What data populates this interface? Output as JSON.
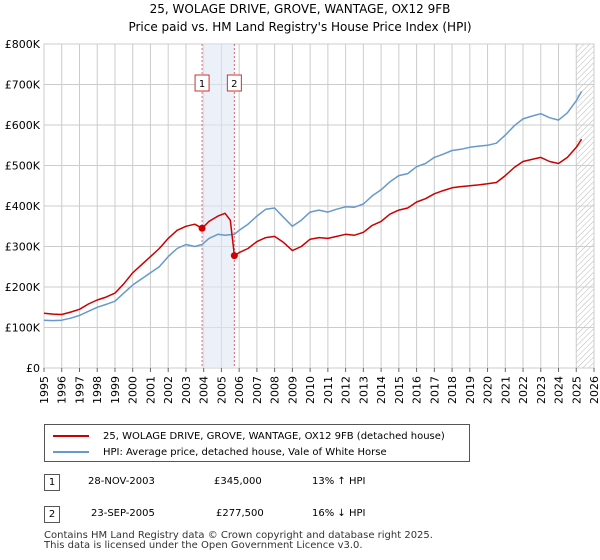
{
  "title_line1": "25, WOLAGE DRIVE, GROVE, WANTAGE, OX12 9FB",
  "title_line2": "Price paid vs. HM Land Registry's House Price Index (HPI)",
  "colors": {
    "price": "#cc0000",
    "hpi": "#6699cc",
    "grid": "#cccccc",
    "vline": "#e06666",
    "hatch": "#999999"
  },
  "chart_data": {
    "type": "line",
    "title": "Price paid vs. HM Land Registry's House Price Index (HPI)",
    "xlabel": "",
    "ylabel": "",
    "xlim": [
      1995,
      2026
    ],
    "ylim": [
      0,
      800000
    ],
    "y_ticks": [
      {
        "value": 0,
        "label": "£0"
      },
      {
        "value": 100000,
        "label": "£100K"
      },
      {
        "value": 200000,
        "label": "£200K"
      },
      {
        "value": 300000,
        "label": "£300K"
      },
      {
        "value": 400000,
        "label": "£400K"
      },
      {
        "value": 500000,
        "label": "£500K"
      },
      {
        "value": 600000,
        "label": "£600K"
      },
      {
        "value": 700000,
        "label": "£700K"
      },
      {
        "value": 800000,
        "label": "£800K"
      }
    ],
    "x_ticks": [
      "1995",
      "1996",
      "1997",
      "1998",
      "1999",
      "2000",
      "2001",
      "2002",
      "2003",
      "2004",
      "2005",
      "2006",
      "2007",
      "2008",
      "2009",
      "2010",
      "2011",
      "2012",
      "2013",
      "2014",
      "2015",
      "2016",
      "2017",
      "2018",
      "2019",
      "2020",
      "2021",
      "2022",
      "2023",
      "2024",
      "2025",
      "2026"
    ],
    "forecast_start": 2025.0,
    "series": [
      {
        "name": "25, WOLAGE DRIVE, GROVE, WANTAGE, OX12 9FB (detached house)",
        "color": "#cc0000",
        "points": [
          [
            1995,
            135000
          ],
          [
            1995.5,
            133000
          ],
          [
            1996,
            132000
          ],
          [
            1996.5,
            138000
          ],
          [
            1997,
            145000
          ],
          [
            1997.5,
            158000
          ],
          [
            1998,
            168000
          ],
          [
            1998.5,
            175000
          ],
          [
            1999,
            185000
          ],
          [
            1999.5,
            208000
          ],
          [
            2000,
            235000
          ],
          [
            2000.5,
            255000
          ],
          [
            2001,
            275000
          ],
          [
            2001.5,
            295000
          ],
          [
            2002,
            320000
          ],
          [
            2002.5,
            340000
          ],
          [
            2003,
            350000
          ],
          [
            2003.5,
            355000
          ],
          [
            2003.91,
            345000
          ],
          [
            2004.3,
            362000
          ],
          [
            2004.8,
            375000
          ],
          [
            2005.2,
            382000
          ],
          [
            2005.5,
            365000
          ],
          [
            2005.73,
            277500
          ],
          [
            2006,
            285000
          ],
          [
            2006.5,
            295000
          ],
          [
            2007,
            312000
          ],
          [
            2007.5,
            322000
          ],
          [
            2008,
            325000
          ],
          [
            2008.5,
            310000
          ],
          [
            2009,
            290000
          ],
          [
            2009.5,
            300000
          ],
          [
            2010,
            318000
          ],
          [
            2010.5,
            322000
          ],
          [
            2011,
            320000
          ],
          [
            2011.5,
            325000
          ],
          [
            2012,
            330000
          ],
          [
            2012.5,
            328000
          ],
          [
            2013,
            335000
          ],
          [
            2013.5,
            352000
          ],
          [
            2014,
            362000
          ],
          [
            2014.5,
            380000
          ],
          [
            2015,
            390000
          ],
          [
            2015.5,
            395000
          ],
          [
            2016,
            410000
          ],
          [
            2016.5,
            418000
          ],
          [
            2017,
            430000
          ],
          [
            2017.5,
            438000
          ],
          [
            2018,
            445000
          ],
          [
            2018.5,
            448000
          ],
          [
            2019,
            450000
          ],
          [
            2019.5,
            452000
          ],
          [
            2020,
            455000
          ],
          [
            2020.5,
            458000
          ],
          [
            2021,
            475000
          ],
          [
            2021.5,
            495000
          ],
          [
            2022,
            510000
          ],
          [
            2022.5,
            515000
          ],
          [
            2023,
            520000
          ],
          [
            2023.5,
            510000
          ],
          [
            2024,
            505000
          ],
          [
            2024.5,
            520000
          ],
          [
            2025,
            545000
          ],
          [
            2025.3,
            565000
          ]
        ]
      },
      {
        "name": "HPI: Average price, detached house, Vale of White Horse",
        "color": "#6699cc",
        "points": [
          [
            1995,
            118000
          ],
          [
            1995.5,
            117000
          ],
          [
            1996,
            118000
          ],
          [
            1996.5,
            123000
          ],
          [
            1997,
            130000
          ],
          [
            1997.5,
            140000
          ],
          [
            1998,
            150000
          ],
          [
            1998.5,
            157000
          ],
          [
            1999,
            165000
          ],
          [
            1999.5,
            185000
          ],
          [
            2000,
            205000
          ],
          [
            2000.5,
            220000
          ],
          [
            2001,
            235000
          ],
          [
            2001.5,
            250000
          ],
          [
            2002,
            275000
          ],
          [
            2002.5,
            295000
          ],
          [
            2003,
            305000
          ],
          [
            2003.5,
            300000
          ],
          [
            2003.91,
            305000
          ],
          [
            2004.3,
            320000
          ],
          [
            2004.8,
            330000
          ],
          [
            2005.2,
            328000
          ],
          [
            2005.73,
            330000
          ],
          [
            2006,
            340000
          ],
          [
            2006.5,
            355000
          ],
          [
            2007,
            375000
          ],
          [
            2007.5,
            392000
          ],
          [
            2008,
            395000
          ],
          [
            2008.5,
            372000
          ],
          [
            2009,
            350000
          ],
          [
            2009.5,
            365000
          ],
          [
            2010,
            385000
          ],
          [
            2010.5,
            390000
          ],
          [
            2011,
            385000
          ],
          [
            2011.5,
            392000
          ],
          [
            2012,
            398000
          ],
          [
            2012.5,
            397000
          ],
          [
            2013,
            405000
          ],
          [
            2013.5,
            425000
          ],
          [
            2014,
            440000
          ],
          [
            2014.5,
            460000
          ],
          [
            2015,
            475000
          ],
          [
            2015.5,
            480000
          ],
          [
            2016,
            497000
          ],
          [
            2016.5,
            505000
          ],
          [
            2017,
            520000
          ],
          [
            2017.5,
            528000
          ],
          [
            2018,
            537000
          ],
          [
            2018.5,
            540000
          ],
          [
            2019,
            545000
          ],
          [
            2019.5,
            548000
          ],
          [
            2020,
            550000
          ],
          [
            2020.5,
            555000
          ],
          [
            2021,
            575000
          ],
          [
            2021.5,
            598000
          ],
          [
            2022,
            615000
          ],
          [
            2022.5,
            622000
          ],
          [
            2023,
            628000
          ],
          [
            2023.5,
            618000
          ],
          [
            2024,
            612000
          ],
          [
            2024.5,
            630000
          ],
          [
            2025,
            660000
          ],
          [
            2025.3,
            683000
          ]
        ]
      }
    ],
    "annotations": [
      {
        "label": "1",
        "x": 2003.91
      },
      {
        "label": "2",
        "x": 2005.73
      }
    ],
    "sale_points": [
      {
        "x": 2003.91,
        "y": 345000
      },
      {
        "x": 2005.73,
        "y": 277500
      }
    ]
  },
  "legend": {
    "items": [
      {
        "label": "25, WOLAGE DRIVE, GROVE, WANTAGE, OX12 9FB (detached house)",
        "color": "#cc0000"
      },
      {
        "label": "HPI: Average price, detached house, Vale of White Horse",
        "color": "#6699cc"
      }
    ]
  },
  "transactions": [
    {
      "num": "1",
      "date": "28-NOV-2003",
      "price": "£345,000",
      "hpi": "13% ↑ HPI"
    },
    {
      "num": "2",
      "date": "23-SEP-2005",
      "price": "£277,500",
      "hpi": "16% ↓ HPI"
    }
  ],
  "footer": {
    "line1": "Contains HM Land Registry data © Crown copyright and database right 2025.",
    "line2": "This data is licensed under the Open Government Licence v3.0."
  }
}
